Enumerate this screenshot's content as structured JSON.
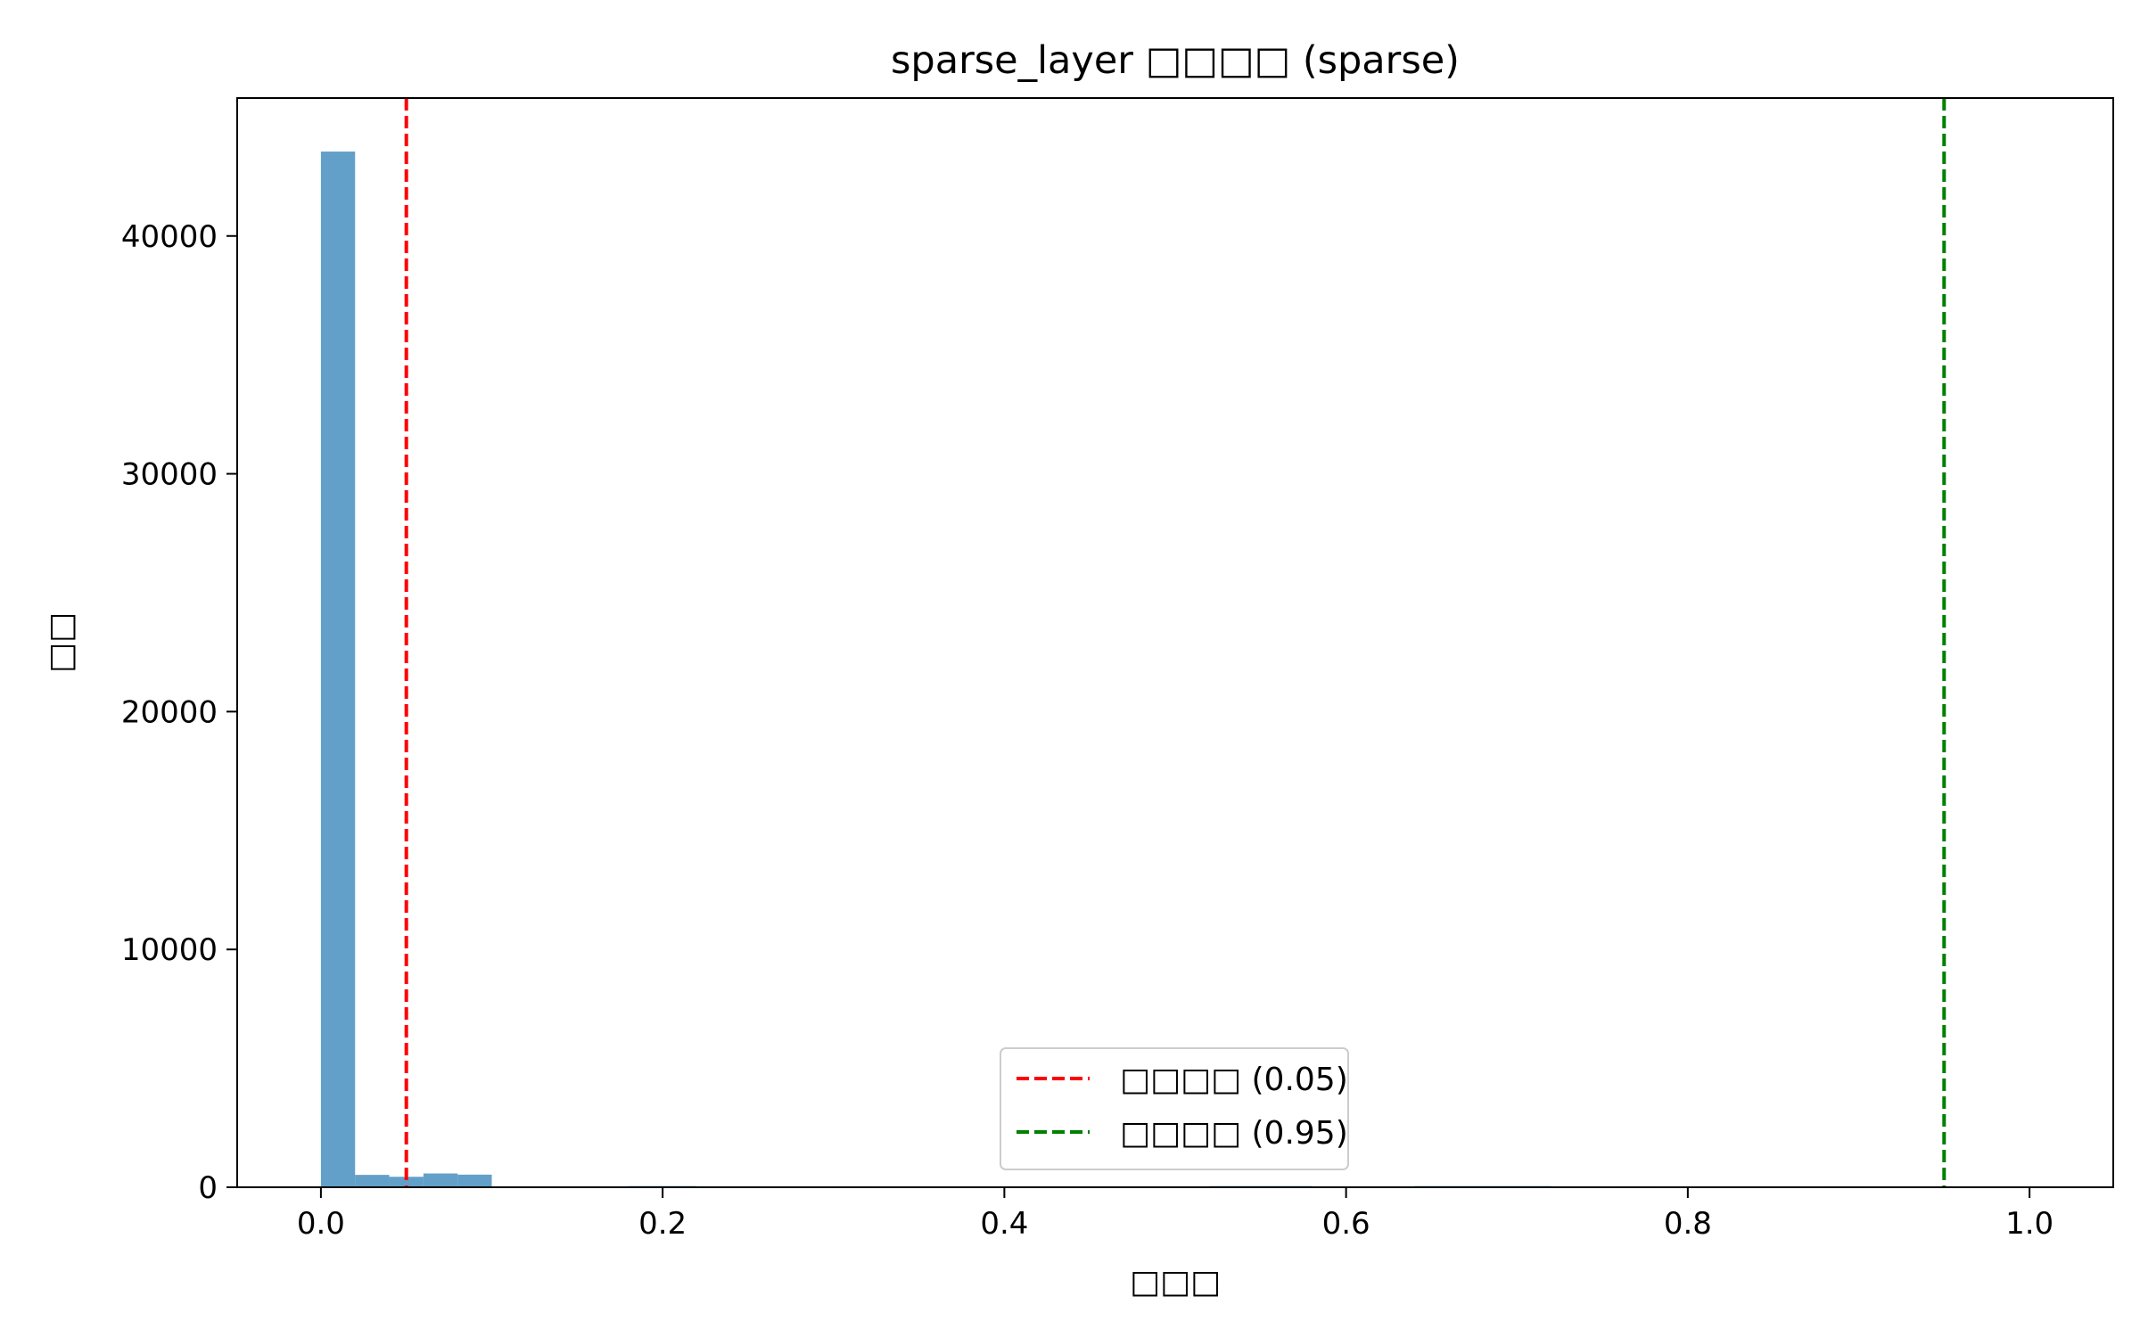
{
  "chart_data": {
    "type": "bar",
    "title": "sparse_layer □□□□ (sparse)",
    "xlabel": "□□□",
    "ylabel": "□□",
    "xlim": [
      -0.049,
      1.049
    ],
    "ylim": [
      0,
      45800
    ],
    "xticks": [
      0.0,
      0.2,
      0.4,
      0.6,
      0.8,
      1.0
    ],
    "xtick_labels": [
      "0.0",
      "0.2",
      "0.4",
      "0.6",
      "0.8",
      "1.0"
    ],
    "yticks": [
      0,
      10000,
      20000,
      30000,
      40000
    ],
    "ytick_labels": [
      "0",
      "10000",
      "20000",
      "30000",
      "40000"
    ],
    "bin_width": 0.02,
    "bins": [
      {
        "x0": 0.0,
        "count": 43550
      },
      {
        "x0": 0.02,
        "count": 520
      },
      {
        "x0": 0.04,
        "count": 440
      },
      {
        "x0": 0.06,
        "count": 580
      },
      {
        "x0": 0.08,
        "count": 530
      },
      {
        "x0": 0.14,
        "count": 40
      },
      {
        "x0": 0.18,
        "count": 50
      },
      {
        "x0": 0.2,
        "count": 50
      },
      {
        "x0": 0.3,
        "count": 40
      },
      {
        "x0": 0.52,
        "count": 50
      },
      {
        "x0": 0.54,
        "count": 50
      },
      {
        "x0": 0.56,
        "count": 50
      },
      {
        "x0": 0.64,
        "count": 50
      },
      {
        "x0": 0.66,
        "count": 50
      },
      {
        "x0": 0.68,
        "count": 50
      },
      {
        "x0": 0.7,
        "count": 50
      },
      {
        "x0": 0.76,
        "count": 40
      },
      {
        "x0": 0.88,
        "count": 40
      },
      {
        "x0": 0.96,
        "count": 40
      }
    ],
    "bar_color": "#1f77b4",
    "bar_opacity": 0.7,
    "reference_lines": [
      {
        "x": 0.05,
        "color": "#ff0000",
        "label": "□□□□ (0.05)"
      },
      {
        "x": 0.95,
        "color": "#008000",
        "label": "□□□□ (0.95)"
      }
    ],
    "legend_position": "lower-center",
    "grid": false
  }
}
